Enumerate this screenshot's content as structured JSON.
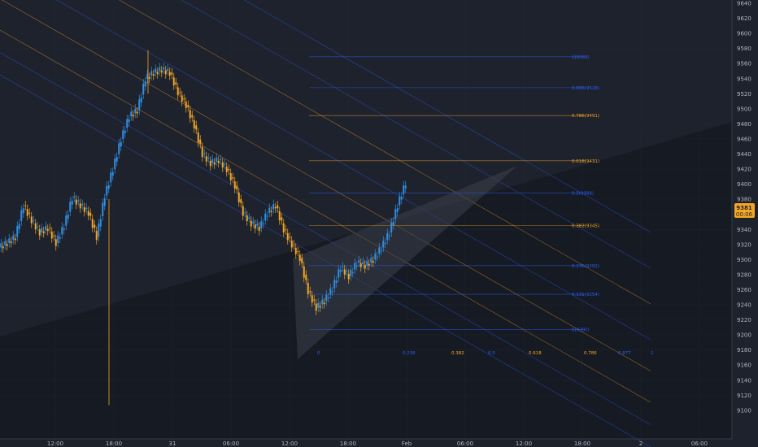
{
  "chart_data": {
    "type": "candlestick",
    "y_axis": {
      "ticks": [
        9640,
        9620,
        9600,
        9580,
        9560,
        9540,
        9520,
        9500,
        9480,
        9460,
        9440,
        9420,
        9400,
        9380,
        9360,
        9340,
        9320,
        9300,
        9280,
        9260,
        9240,
        9220,
        9200,
        9180,
        9160,
        9140,
        9120,
        9100
      ],
      "range": [
        9095,
        9645
      ]
    },
    "x_axis": {
      "ticks": [
        "12:00",
        "18:00",
        "31",
        "06:00",
        "12:00",
        "18:00",
        "Feb",
        "06:00",
        "12:00",
        "18:00",
        "2",
        "06:00"
      ]
    },
    "last_price": {
      "value": "9381",
      "countdown": "00:06",
      "color": "#f5a623"
    },
    "fib_retracement": {
      "levels": [
        {
          "label": "1(9569)",
          "value": 9569,
          "color": "#2962ff"
        },
        {
          "label": "0.886(9528)",
          "value": 9528,
          "color": "#2962ff"
        },
        {
          "label": "0.786(9491)",
          "value": 9491,
          "color": "#f5a623"
        },
        {
          "label": "0.618(9431)",
          "value": 9431,
          "color": "#f5a623"
        },
        {
          "label": "0.5(9388)",
          "value": 9388,
          "color": "#2962ff"
        },
        {
          "label": "0.382(9345)",
          "value": 9345,
          "color": "#f5a623"
        },
        {
          "label": "0.236(9292)",
          "value": 9292,
          "color": "#2962ff"
        },
        {
          "label": "0.131(9254)",
          "value": 9254,
          "color": "#2962ff"
        },
        {
          "label": "0(9207)",
          "value": 9207,
          "color": "#2962ff"
        }
      ]
    },
    "fib_channel_labels": [
      {
        "label": "0",
        "color": "#2962ff"
      },
      {
        "label": "0.236",
        "color": "#2962ff"
      },
      {
        "label": "0.382",
        "color": "#f5a623"
      },
      {
        "label": "0.5",
        "color": "#2962ff"
      },
      {
        "label": "0.618",
        "color": "#f5a623"
      },
      {
        "label": "0.786",
        "color": "#f5a623"
      },
      {
        "label": "0.877",
        "color": "#2962ff"
      },
      {
        "label": "1",
        "color": "#2962ff"
      }
    ],
    "colors": {
      "up": "#2f8fe6",
      "down": "#f5a623",
      "background": "#1e222d",
      "grid": "#2a2e39"
    }
  }
}
